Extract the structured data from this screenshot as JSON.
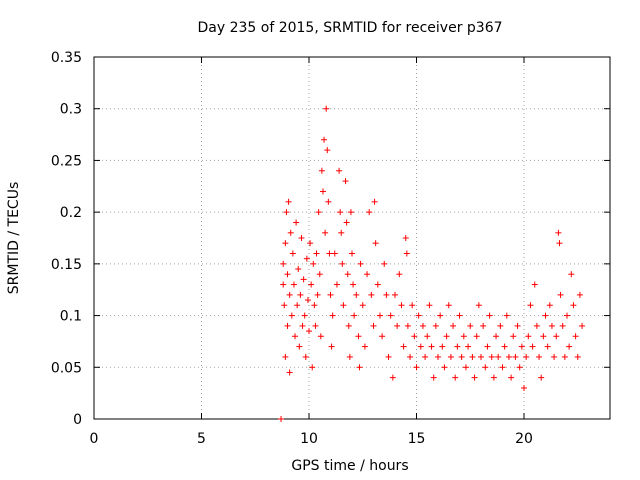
{
  "chart_data": {
    "type": "scatter",
    "title": "Day 235 of 2015, SRMTID for receiver p367",
    "xlabel": "GPS time / hours",
    "ylabel": "SRMTID / TECUs",
    "xlim": [
      0,
      24
    ],
    "ylim": [
      0,
      0.35
    ],
    "x_ticks": [
      0,
      5,
      10,
      15,
      20
    ],
    "x_tick_labels": [
      "0",
      "5",
      "10",
      "15",
      "20"
    ],
    "y_ticks": [
      0,
      0.05,
      0.1,
      0.15,
      0.2,
      0.25,
      0.3,
      0.35
    ],
    "y_tick_labels": [
      "0",
      "0.05",
      "0.1",
      "0.15",
      "0.2",
      "0.25",
      "0.3",
      "0.35"
    ],
    "grid": true,
    "marker": "+",
    "series": [
      {
        "name": "SRMTID",
        "color": "#ff0000",
        "x_range": [
          8.7,
          22.7
        ],
        "points": [
          [
            8.7,
            0.0
          ],
          [
            8.8,
            0.15
          ],
          [
            8.8,
            0.13
          ],
          [
            8.85,
            0.11
          ],
          [
            8.9,
            0.17
          ],
          [
            8.9,
            0.06
          ],
          [
            8.95,
            0.2
          ],
          [
            9.0,
            0.14
          ],
          [
            9.0,
            0.09
          ],
          [
            9.05,
            0.21
          ],
          [
            9.1,
            0.12
          ],
          [
            9.1,
            0.045
          ],
          [
            9.15,
            0.18
          ],
          [
            9.2,
            0.1
          ],
          [
            9.25,
            0.16
          ],
          [
            9.3,
            0.13
          ],
          [
            9.35,
            0.08
          ],
          [
            9.4,
            0.19
          ],
          [
            9.45,
            0.11
          ],
          [
            9.5,
            0.145
          ],
          [
            9.55,
            0.07
          ],
          [
            9.6,
            0.12
          ],
          [
            9.65,
            0.175
          ],
          [
            9.7,
            0.09
          ],
          [
            9.75,
            0.135
          ],
          [
            9.8,
            0.1
          ],
          [
            9.85,
            0.06
          ],
          [
            9.9,
            0.155
          ],
          [
            9.95,
            0.115
          ],
          [
            10.0,
            0.085
          ],
          [
            10.05,
            0.17
          ],
          [
            10.1,
            0.13
          ],
          [
            10.15,
            0.05
          ],
          [
            10.2,
            0.15
          ],
          [
            10.25,
            0.11
          ],
          [
            10.3,
            0.09
          ],
          [
            10.35,
            0.16
          ],
          [
            10.4,
            0.12
          ],
          [
            10.45,
            0.2
          ],
          [
            10.5,
            0.14
          ],
          [
            10.55,
            0.08
          ],
          [
            10.6,
            0.24
          ],
          [
            10.65,
            0.22
          ],
          [
            10.7,
            0.27
          ],
          [
            10.75,
            0.18
          ],
          [
            10.8,
            0.3
          ],
          [
            10.85,
            0.26
          ],
          [
            10.9,
            0.21
          ],
          [
            10.95,
            0.16
          ],
          [
            11.0,
            0.12
          ],
          [
            11.05,
            0.07
          ],
          [
            11.1,
            0.1
          ],
          [
            11.2,
            0.16
          ],
          [
            11.3,
            0.13
          ],
          [
            11.4,
            0.24
          ],
          [
            11.45,
            0.2
          ],
          [
            11.5,
            0.18
          ],
          [
            11.55,
            0.15
          ],
          [
            11.6,
            0.11
          ],
          [
            11.7,
            0.23
          ],
          [
            11.75,
            0.19
          ],
          [
            11.8,
            0.14
          ],
          [
            11.85,
            0.09
          ],
          [
            11.9,
            0.06
          ],
          [
            11.95,
            0.2
          ],
          [
            12.0,
            0.16
          ],
          [
            12.05,
            0.13
          ],
          [
            12.1,
            0.1
          ],
          [
            12.2,
            0.12
          ],
          [
            12.3,
            0.08
          ],
          [
            12.35,
            0.05
          ],
          [
            12.4,
            0.15
          ],
          [
            12.5,
            0.11
          ],
          [
            12.6,
            0.07
          ],
          [
            12.7,
            0.14
          ],
          [
            12.8,
            0.2
          ],
          [
            12.9,
            0.12
          ],
          [
            13.0,
            0.09
          ],
          [
            13.05,
            0.21
          ],
          [
            13.1,
            0.17
          ],
          [
            13.2,
            0.13
          ],
          [
            13.3,
            0.1
          ],
          [
            13.4,
            0.08
          ],
          [
            13.5,
            0.15
          ],
          [
            13.6,
            0.12
          ],
          [
            13.7,
            0.06
          ],
          [
            13.8,
            0.1
          ],
          [
            13.9,
            0.04
          ],
          [
            14.0,
            0.12
          ],
          [
            14.1,
            0.09
          ],
          [
            14.2,
            0.14
          ],
          [
            14.3,
            0.11
          ],
          [
            14.4,
            0.07
          ],
          [
            14.5,
            0.175
          ],
          [
            14.55,
            0.16
          ],
          [
            14.6,
            0.09
          ],
          [
            14.7,
            0.06
          ],
          [
            14.8,
            0.11
          ],
          [
            14.9,
            0.08
          ],
          [
            15.0,
            0.05
          ],
          [
            15.1,
            0.1
          ],
          [
            15.2,
            0.07
          ],
          [
            15.3,
            0.09
          ],
          [
            15.4,
            0.06
          ],
          [
            15.5,
            0.08
          ],
          [
            15.6,
            0.11
          ],
          [
            15.7,
            0.07
          ],
          [
            15.8,
            0.04
          ],
          [
            15.9,
            0.09
          ],
          [
            16.0,
            0.06
          ],
          [
            16.1,
            0.1
          ],
          [
            16.2,
            0.07
          ],
          [
            16.3,
            0.05
          ],
          [
            16.4,
            0.08
          ],
          [
            16.5,
            0.11
          ],
          [
            16.6,
            0.06
          ],
          [
            16.7,
            0.09
          ],
          [
            16.8,
            0.04
          ],
          [
            16.9,
            0.07
          ],
          [
            17.0,
            0.1
          ],
          [
            17.1,
            0.06
          ],
          [
            17.2,
            0.08
          ],
          [
            17.3,
            0.05
          ],
          [
            17.4,
            0.07
          ],
          [
            17.5,
            0.09
          ],
          [
            17.6,
            0.06
          ],
          [
            17.7,
            0.04
          ],
          [
            17.8,
            0.08
          ],
          [
            17.9,
            0.11
          ],
          [
            18.0,
            0.06
          ],
          [
            18.1,
            0.09
          ],
          [
            18.2,
            0.05
          ],
          [
            18.3,
            0.07
          ],
          [
            18.4,
            0.1
          ],
          [
            18.5,
            0.06
          ],
          [
            18.6,
            0.04
          ],
          [
            18.7,
            0.08
          ],
          [
            18.8,
            0.06
          ],
          [
            18.9,
            0.09
          ],
          [
            19.0,
            0.05
          ],
          [
            19.1,
            0.07
          ],
          [
            19.2,
            0.1
          ],
          [
            19.3,
            0.06
          ],
          [
            19.4,
            0.04
          ],
          [
            19.5,
            0.08
          ],
          [
            19.6,
            0.06
          ],
          [
            19.7,
            0.09
          ],
          [
            19.8,
            0.05
          ],
          [
            19.9,
            0.07
          ],
          [
            20.0,
            0.03
          ],
          [
            20.1,
            0.06
          ],
          [
            20.2,
            0.08
          ],
          [
            20.3,
            0.11
          ],
          [
            20.4,
            0.07
          ],
          [
            20.5,
            0.13
          ],
          [
            20.6,
            0.09
          ],
          [
            20.7,
            0.06
          ],
          [
            20.8,
            0.04
          ],
          [
            20.9,
            0.08
          ],
          [
            21.0,
            0.1
          ],
          [
            21.1,
            0.07
          ],
          [
            21.2,
            0.11
          ],
          [
            21.3,
            0.09
          ],
          [
            21.4,
            0.06
          ],
          [
            21.5,
            0.08
          ],
          [
            21.6,
            0.18
          ],
          [
            21.65,
            0.17
          ],
          [
            21.7,
            0.12
          ],
          [
            21.8,
            0.09
          ],
          [
            21.9,
            0.06
          ],
          [
            22.0,
            0.1
          ],
          [
            22.1,
            0.07
          ],
          [
            22.2,
            0.14
          ],
          [
            22.3,
            0.11
          ],
          [
            22.4,
            0.08
          ],
          [
            22.5,
            0.06
          ],
          [
            22.6,
            0.12
          ],
          [
            22.7,
            0.09
          ]
        ]
      }
    ]
  }
}
